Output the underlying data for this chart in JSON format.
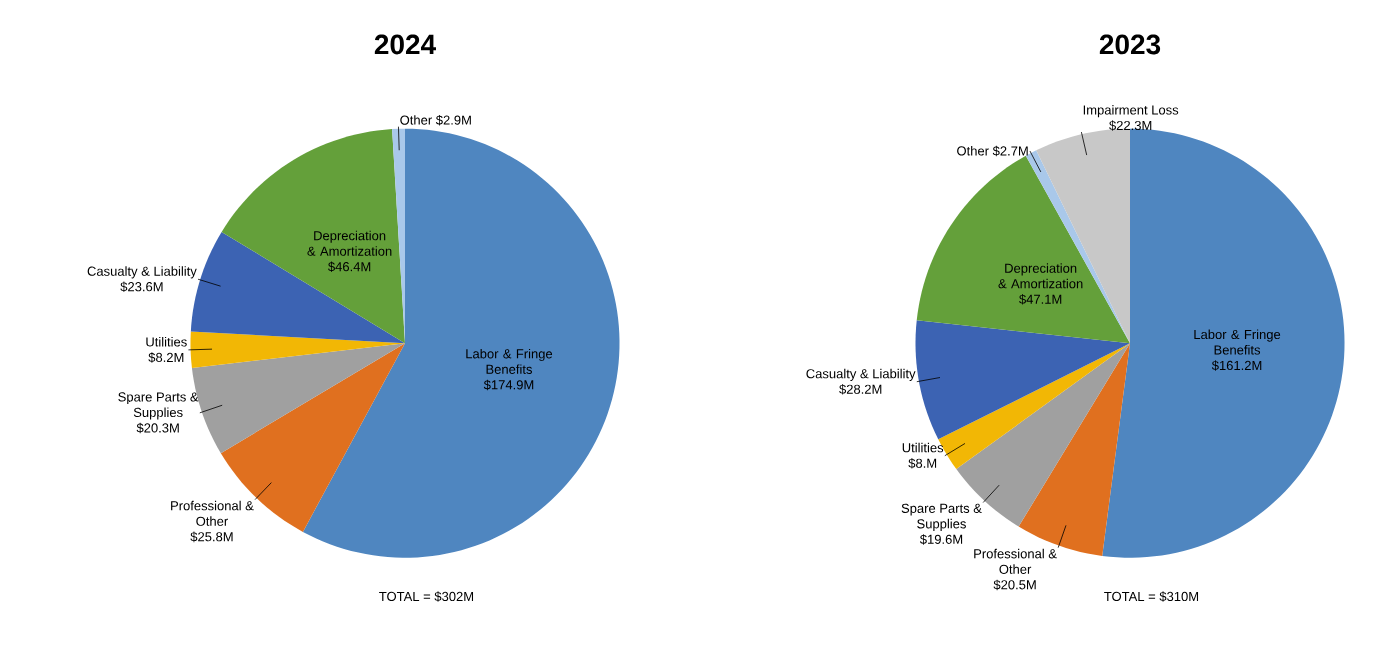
{
  "chart_data": [
    {
      "type": "pie",
      "title": "2024",
      "categories": [
        "Labor & Fringe Benefits",
        "Professional & Other",
        "Spare Parts & Supplies",
        "Utilities",
        "Casualty & Liability",
        "Depreciation & Amortization",
        "Other"
      ],
      "values": [
        174.9,
        25.8,
        20.3,
        8.2,
        23.6,
        46.4,
        2.9
      ],
      "value_labels": [
        "$174.9M",
        "$25.8M",
        "$20.3M",
        "$8.2M",
        "$23.6M",
        "$46.4M",
        "$2.9M"
      ],
      "colors": [
        "#4f86c0",
        "#e0701f",
        "#a0a0a0",
        "#f2b705",
        "#3c63b3",
        "#64a03a",
        "#a9c8ea"
      ],
      "annotations": [
        "TOTAL = $302M"
      ]
    },
    {
      "type": "pie",
      "title": "2023",
      "categories": [
        "Labor & Fringe Benefits",
        "Professional & Other",
        "Spare Parts & Supplies",
        "Utilities",
        "Casualty & Liability",
        "Depreciation & Amortization",
        "Other",
        "Impairment Loss"
      ],
      "values": [
        161.2,
        20.5,
        19.6,
        8.0,
        28.2,
        47.1,
        2.7,
        22.3
      ],
      "value_labels": [
        "$161.2M",
        "$20.5M",
        "$19.6M",
        "$8.M",
        "$28.2M",
        "$47.1M",
        "$2.7M",
        "$22.3M"
      ],
      "colors": [
        "#4f86c0",
        "#e0701f",
        "#a0a0a0",
        "#f2b705",
        "#3c63b3",
        "#64a03a",
        "#a9c8ea",
        "#c8c8c8"
      ],
      "annotations": [
        "TOTAL = $310M"
      ]
    }
  ]
}
